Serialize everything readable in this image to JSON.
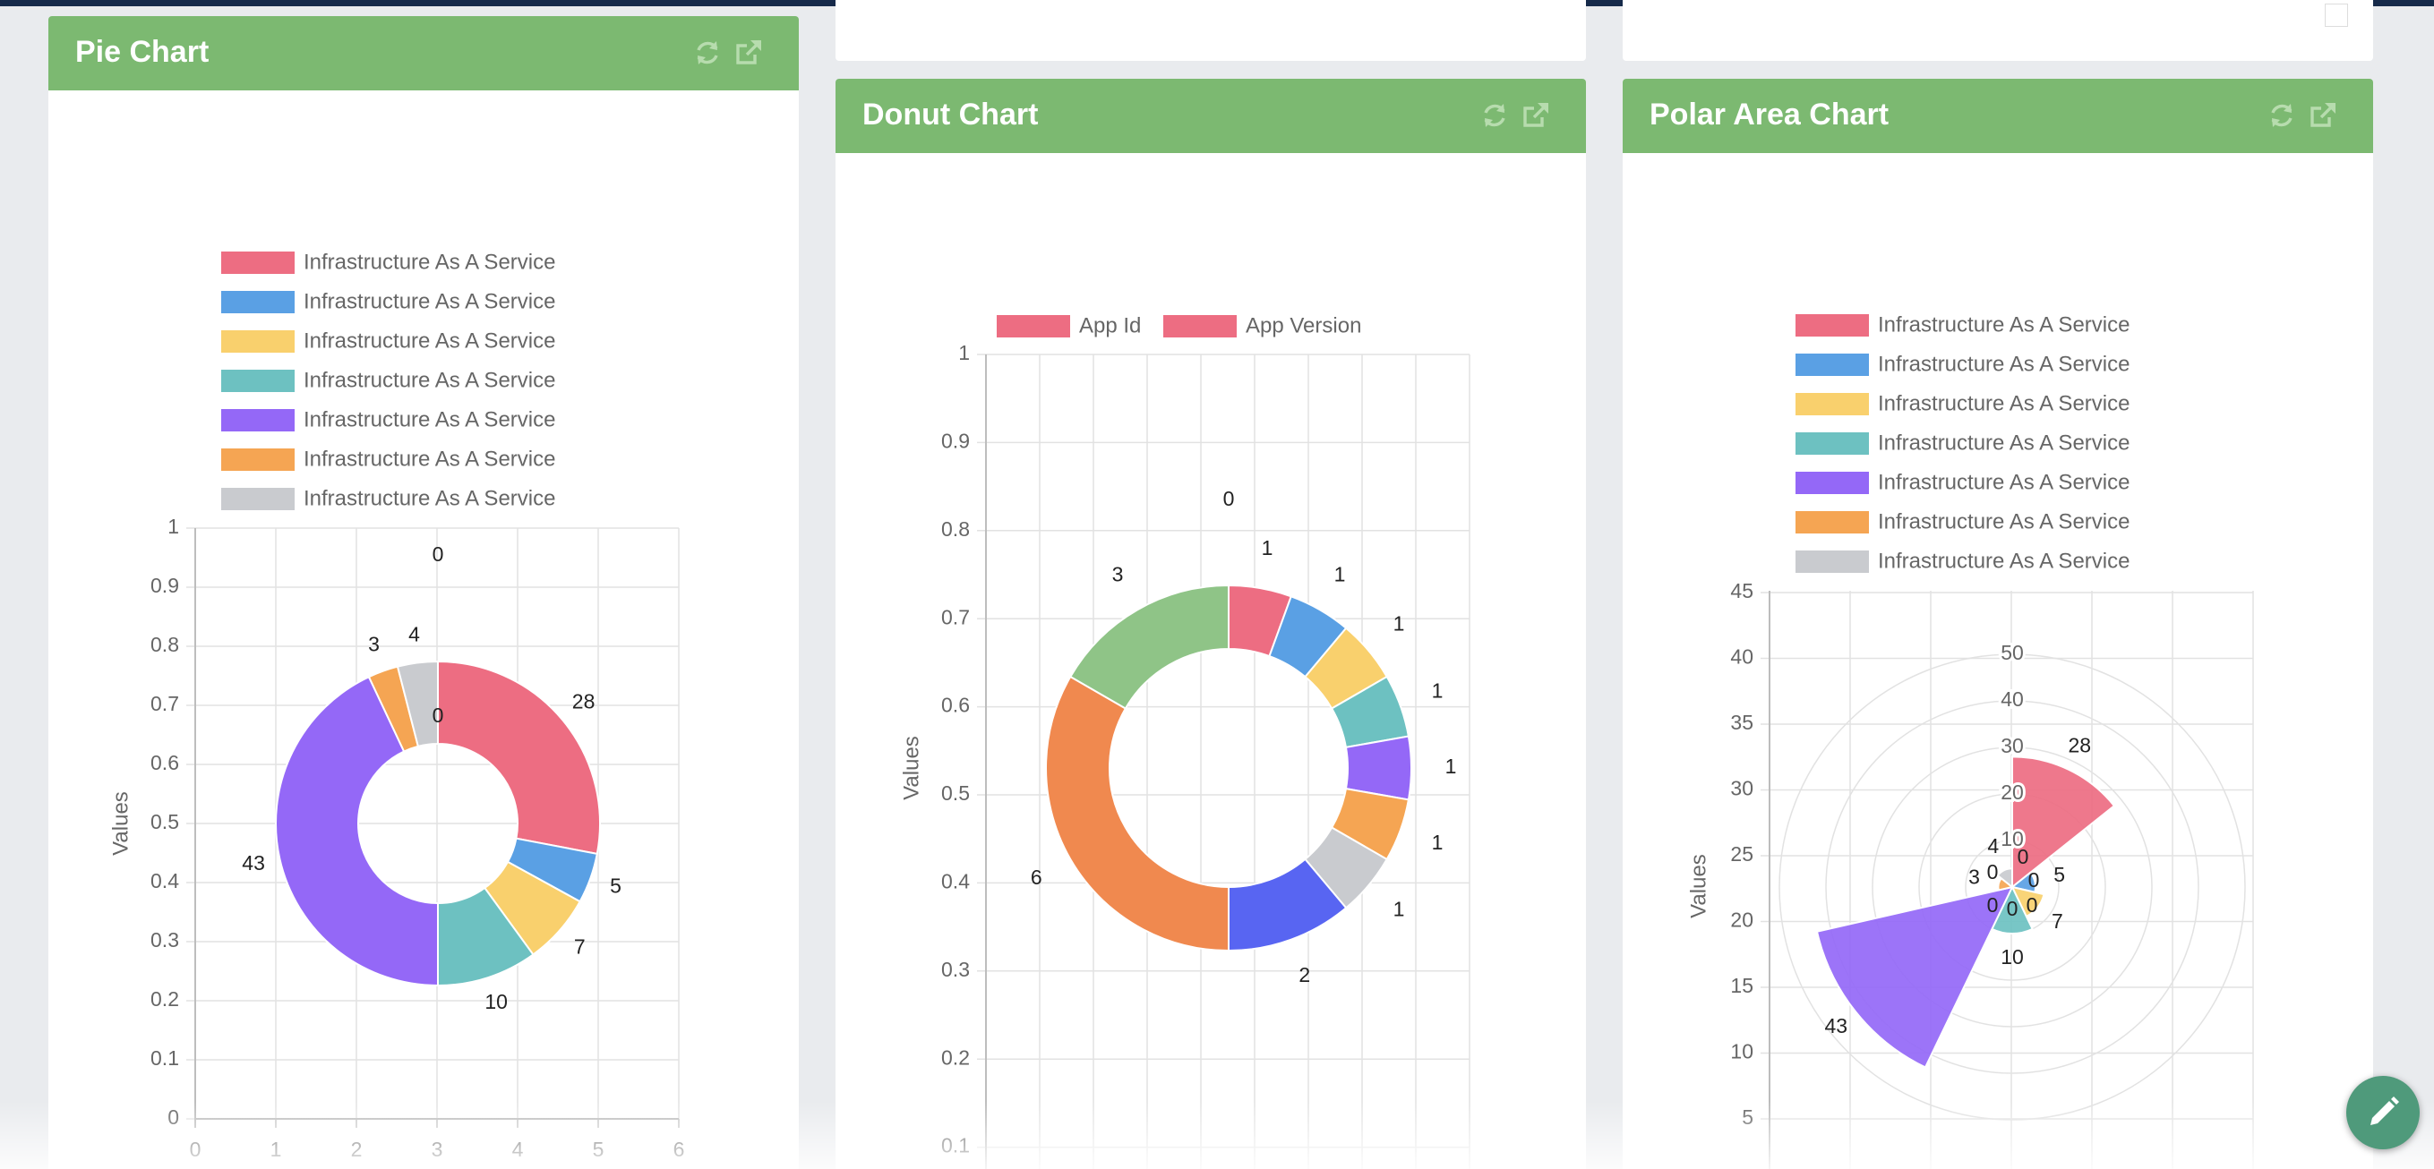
{
  "cards": {
    "pie": {
      "title": "Pie Chart"
    },
    "donut": {
      "title": "Donut Chart"
    },
    "polar": {
      "title": "Polar Area Chart"
    }
  },
  "toolbar": {
    "refresh_icon": "refresh-icon",
    "open_icon": "external-link-icon"
  },
  "fab": {
    "icon": "pencil-icon",
    "color": "#4f9a7b"
  },
  "colors": {
    "header": "#7cb971",
    "topbar": "#162a4a"
  },
  "chart_data": [
    {
      "type": "pie",
      "title": "Pie Chart",
      "legend": [
        "Infrastructure As A Service",
        "Infrastructure As A Service",
        "Infrastructure As A Service",
        "Infrastructure As A Service",
        "Infrastructure As A Service",
        "Infrastructure As A Service",
        "Infrastructure As A Service"
      ],
      "legend_colors": [
        "#ed6d82",
        "#5aa0e4",
        "#f9d06d",
        "#6dc1c1",
        "#9468f7",
        "#f5a553",
        "#c9cbcf"
      ],
      "values": [
        28,
        5,
        7,
        10,
        43,
        3,
        4
      ],
      "extra_labels": [
        "0",
        "0"
      ],
      "ylabel": "Values",
      "ylim": [
        0,
        1
      ],
      "yticks": [
        "0",
        "0.1",
        "0.2",
        "0.3",
        "0.4",
        "0.5",
        "0.6",
        "0.7",
        "0.8",
        "0.9",
        "1"
      ],
      "xlim": [
        0,
        6
      ],
      "xticks": [
        "0",
        "1",
        "2",
        "3",
        "4",
        "5",
        "6"
      ],
      "legend_position": "top",
      "grid": true
    },
    {
      "type": "pie",
      "title": "Donut Chart",
      "legend": [
        "App Id",
        "App Version"
      ],
      "legend_colors": [
        "#ed6d82",
        "#ed6d82"
      ],
      "values": [
        1,
        1,
        1,
        1,
        1,
        1,
        1,
        2,
        6,
        3
      ],
      "colors": [
        "#ed6d82",
        "#5aa0e4",
        "#f9d06d",
        "#6dc1c1",
        "#9468f7",
        "#f5a553",
        "#c9cbcf",
        "#5865f2",
        "#f0894f",
        "#8fc487"
      ],
      "extra_labels": [
        "0"
      ],
      "ylabel": "Values",
      "ylim": [
        0,
        1
      ],
      "yticks": [
        "0.1",
        "0.2",
        "0.3",
        "0.4",
        "0.5",
        "0.6",
        "0.7",
        "0.8",
        "0.9",
        "1"
      ],
      "legend_position": "top",
      "grid": true
    },
    {
      "type": "polar-area",
      "title": "Polar Area Chart",
      "legend": [
        "Infrastructure As A Service",
        "Infrastructure As A Service",
        "Infrastructure As A Service",
        "Infrastructure As A Service",
        "Infrastructure As A Service",
        "Infrastructure As A Service",
        "Infrastructure As A Service"
      ],
      "legend_colors": [
        "#ed6d82",
        "#5aa0e4",
        "#f9d06d",
        "#6dc1c1",
        "#9468f7",
        "#f5a553",
        "#c9cbcf"
      ],
      "values": [
        28,
        5,
        7,
        10,
        43,
        3,
        4
      ],
      "extra_labels": [
        "0",
        "0",
        "0",
        "0",
        "0",
        "0"
      ],
      "ylabel": "Values",
      "yticks": [
        "5",
        "10",
        "15",
        "20",
        "25",
        "30",
        "35",
        "40",
        "45"
      ],
      "rticks": [
        "10",
        "20",
        "30",
        "40",
        "50"
      ],
      "legend_position": "top",
      "grid": true
    }
  ]
}
